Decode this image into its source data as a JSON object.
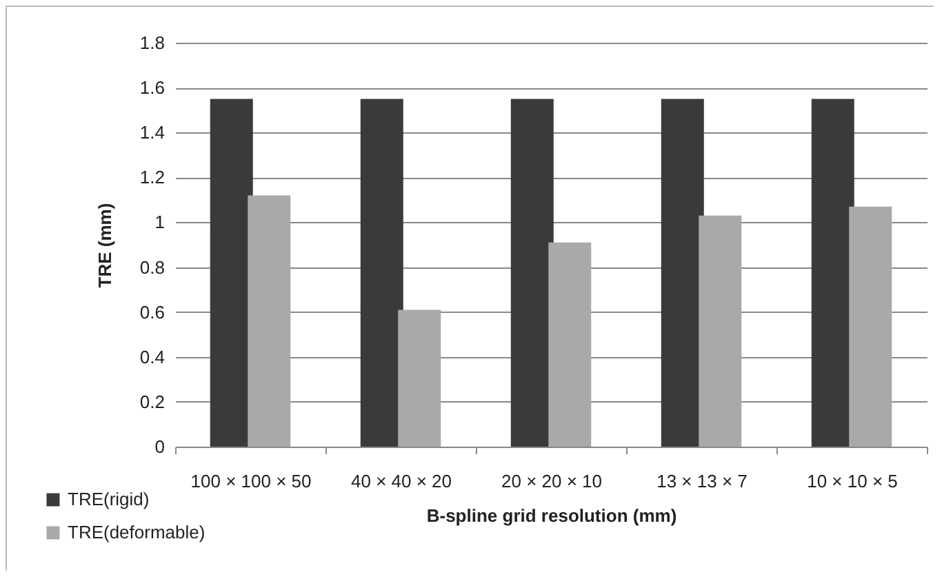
{
  "chart_data": {
    "type": "bar",
    "xlabel": "B-spline grid resolution (mm)",
    "ylabel": "TRE (mm)",
    "categories": [
      "100 × 100 × 50",
      "40 × 40 × 20",
      "20 × 20 × 10",
      "13 × 13 × 7",
      "10 × 10 × 5"
    ],
    "series": [
      {
        "name": "TRE(rigid)",
        "color": "#3a3a3a",
        "values": [
          1.55,
          1.55,
          1.55,
          1.55,
          1.55
        ]
      },
      {
        "name": "TRE(deformable)",
        "color": "#a9a9a9",
        "values": [
          1.12,
          0.61,
          0.91,
          1.03,
          1.07
        ]
      }
    ],
    "ylim": [
      0,
      1.8
    ],
    "yticks": [
      0,
      0.2,
      0.4,
      0.6,
      0.8,
      1,
      1.2,
      1.4,
      1.6,
      1.8
    ],
    "grid": "y",
    "legend": "bottom left"
  }
}
